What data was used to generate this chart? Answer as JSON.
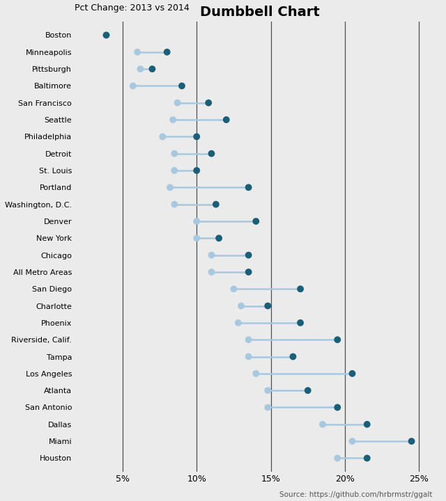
{
  "title": "Dumbbell Chart",
  "subtitle": "Pct Change: 2013 vs 2014",
  "source": "Source: https://github.com/hrbrmstr/ggalt",
  "cities": [
    "Boston",
    "Minneapolis",
    "Pittsburgh",
    "Baltimore",
    "San Francisco",
    "Seattle",
    "Philadelphia",
    "Detroit",
    "St. Louis",
    "Portland",
    "Washington, D.C.",
    "Denver",
    "New York",
    "Chicago",
    "All Metro Areas",
    "San Diego",
    "Charlotte",
    "Phoenix",
    "Riverside, Calif.",
    "Tampa",
    "Los Angeles",
    "Atlanta",
    "San Antonio",
    "Dallas",
    "Miami",
    "Houston"
  ],
  "val_2013": [
    3.9,
    6.0,
    6.2,
    5.7,
    8.7,
    8.4,
    7.7,
    8.5,
    8.5,
    8.2,
    8.5,
    10.0,
    10.0,
    11.0,
    11.0,
    12.5,
    13.0,
    12.8,
    13.5,
    13.5,
    14.0,
    14.8,
    14.8,
    18.5,
    20.5,
    19.5
  ],
  "val_2014": [
    3.9,
    8.0,
    7.0,
    9.0,
    10.8,
    12.0,
    10.0,
    11.0,
    10.0,
    13.5,
    11.3,
    14.0,
    11.5,
    13.5,
    13.5,
    17.0,
    14.8,
    17.0,
    19.5,
    16.5,
    20.5,
    17.5,
    19.5,
    21.5,
    24.5,
    21.5
  ],
  "color_2013": "#a8c8e0",
  "color_2014": "#1a5e78",
  "line_color": "#a8c8e0",
  "bg_color": "#ebebeb",
  "vline_color": "#333333",
  "vlines": [
    5,
    10,
    15,
    20,
    25
  ],
  "xlim": [
    2.0,
    26.5
  ],
  "ylim": [
    -0.8,
    25.8
  ],
  "xticks": [
    5,
    10,
    15,
    20,
    25
  ],
  "xtick_labels": [
    "5%",
    "10%",
    "15%",
    "20%",
    "25%"
  ],
  "dot_size": 50,
  "title_fontsize": 14,
  "subtitle_fontsize": 9,
  "label_fontsize": 8,
  "xtick_fontsize": 9
}
